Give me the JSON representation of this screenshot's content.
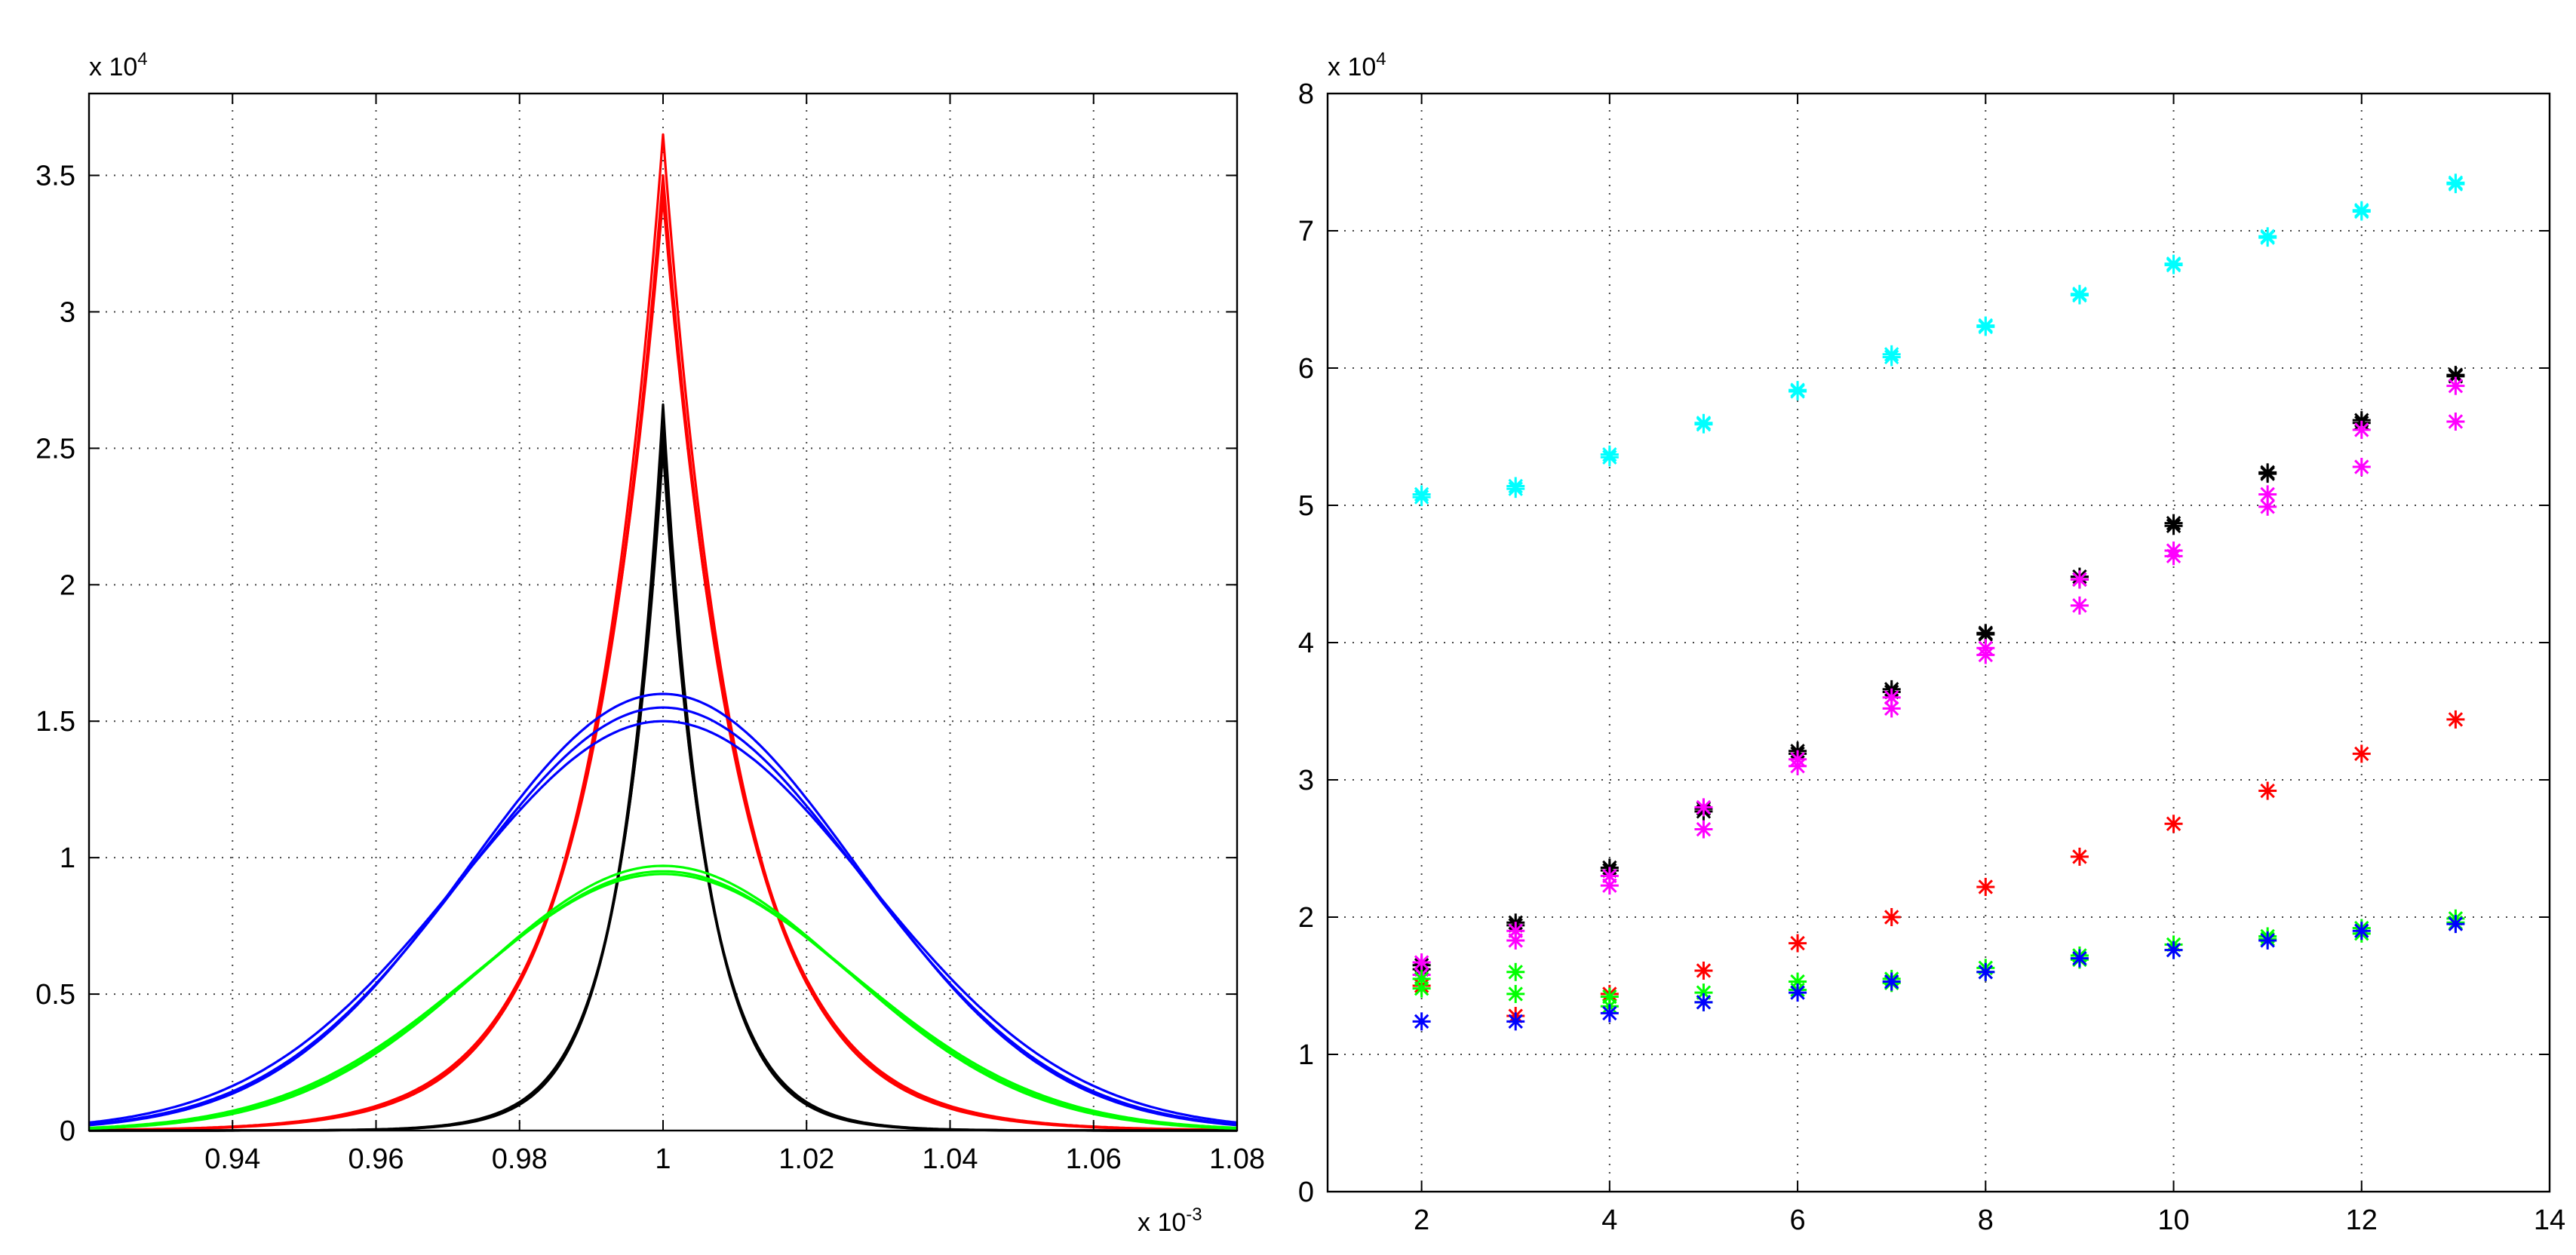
{
  "chart_data": [
    {
      "type": "line",
      "title": "",
      "xlabel": "",
      "ylabel": "",
      "x_exponent_label": "x 10",
      "x_exponent": "-3",
      "y_exponent_label": "x 10",
      "y_exponent": "4",
      "xlim": [
        0.92,
        1.08
      ],
      "ylim": [
        0,
        3.8
      ],
      "grid": true,
      "x_ticks": [
        0.94,
        0.96,
        0.98,
        1.0,
        1.02,
        1.04,
        1.06,
        1.08
      ],
      "x_tick_labels": [
        "0.94",
        "0.96",
        "0.98",
        "1",
        "1.02",
        "1.04",
        "1.06",
        "1.08"
      ],
      "y_ticks": [
        0,
        0.5,
        1,
        1.5,
        2,
        2.5,
        3,
        3.5
      ],
      "y_tick_labels": [
        "0",
        "0.5",
        "1",
        "1.5",
        "2",
        "2.5",
        "3",
        "3.5"
      ],
      "series": [
        {
          "name": "red",
          "color": "#ff0000",
          "shape": "laplace",
          "center": 1.0,
          "peaks": [
            3.65,
            3.5,
            3.45,
            3.42
          ],
          "scales": [
            0.0105,
            0.0107,
            0.0108,
            0.011
          ]
        },
        {
          "name": "black",
          "color": "#000000",
          "shape": "laplace",
          "center": 1.0,
          "peaks": [
            2.66,
            2.58,
            2.53,
            2.5
          ],
          "scales": [
            0.006,
            0.0061,
            0.0062,
            0.0063
          ]
        },
        {
          "name": "blue",
          "color": "#0000ff",
          "shape": "gaussian",
          "center": 1.0,
          "peaks": [
            1.6,
            1.55,
            1.5
          ],
          "sigmas": [
            0.027,
            0.0275,
            0.0285
          ]
        },
        {
          "name": "green",
          "color": "#00ff00",
          "shape": "gaussian",
          "center": 1.0,
          "peaks": [
            0.97,
            0.95,
            0.94
          ],
          "sigmas": [
            0.0255,
            0.026,
            0.0265
          ]
        }
      ]
    },
    {
      "type": "scatter",
      "title": "",
      "xlabel": "",
      "ylabel": "",
      "y_exponent_label": "x 10",
      "y_exponent": "4",
      "xlim": [
        1,
        14
      ],
      "ylim": [
        0,
        8
      ],
      "grid": true,
      "marker": "asterisk",
      "x_ticks": [
        2,
        4,
        6,
        8,
        10,
        12,
        14
      ],
      "x_tick_labels": [
        "2",
        "4",
        "6",
        "8",
        "10",
        "12",
        "14"
      ],
      "y_ticks": [
        0,
        1,
        2,
        3,
        4,
        5,
        6,
        7,
        8
      ],
      "y_tick_labels": [
        "0",
        "1",
        "2",
        "3",
        "4",
        "5",
        "6",
        "7",
        "8"
      ],
      "x": [
        2,
        3,
        4,
        5,
        6,
        7,
        8,
        9,
        10,
        11,
        12,
        13
      ],
      "series": [
        {
          "name": "cyan",
          "color": "#00ffff",
          "values": [
            5.08,
            5.14,
            5.37,
            5.6,
            5.84,
            6.08,
            6.3,
            6.53,
            6.75,
            6.95,
            7.15,
            7.35
          ]
        },
        {
          "name": "cyan-2",
          "color": "#00ffff",
          "values": [
            5.06,
            5.12,
            5.35,
            5.59,
            5.83,
            6.1,
            6.31,
            6.54,
            6.76,
            6.96,
            7.14,
            7.34
          ]
        },
        {
          "name": "black",
          "color": "#000000",
          "values": [
            1.65,
            1.96,
            2.36,
            2.77,
            3.21,
            3.64,
            4.06,
            4.46,
            4.85,
            5.23,
            5.6,
            5.95
          ]
        },
        {
          "name": "black-2",
          "color": "#000000",
          "values": [
            1.62,
            1.94,
            2.34,
            2.79,
            3.19,
            3.66,
            4.07,
            4.48,
            4.87,
            5.24,
            5.62,
            5.94
          ]
        },
        {
          "name": "magenta",
          "color": "#ff00ff",
          "values": [
            1.67,
            1.9,
            2.3,
            2.8,
            3.15,
            3.6,
            3.96,
            4.46,
            4.67,
            5.08,
            5.55,
            5.87
          ]
        },
        {
          "name": "magenta-2",
          "color": "#ff00ff",
          "values": [
            1.58,
            1.83,
            2.23,
            2.64,
            3.1,
            3.52,
            3.91,
            4.27,
            4.63,
            4.99,
            5.28,
            5.61
          ]
        },
        {
          "name": "red",
          "color": "#ff0000",
          "values": [
            1.5,
            1.28,
            1.44,
            1.61,
            1.81,
            2.0,
            2.22,
            2.44,
            2.68,
            2.92,
            3.19,
            3.44
          ]
        },
        {
          "name": "green",
          "color": "#00ff00",
          "values": [
            1.48,
            1.6,
            1.42,
            1.45,
            1.53,
            1.55,
            1.63,
            1.72,
            1.8,
            1.86,
            1.92,
            1.99
          ]
        },
        {
          "name": "green-2",
          "color": "#00ff00",
          "values": [
            1.55,
            1.44,
            1.35,
            1.38,
            1.47,
            1.52,
            1.6,
            1.69,
            1.76,
            1.84,
            1.88,
            1.96
          ]
        },
        {
          "name": "blue",
          "color": "#0000ff",
          "values": [
            1.24,
            1.24,
            1.3,
            1.38,
            1.45,
            1.53,
            1.6,
            1.7,
            1.76,
            1.83,
            1.9,
            1.95
          ]
        }
      ]
    }
  ]
}
